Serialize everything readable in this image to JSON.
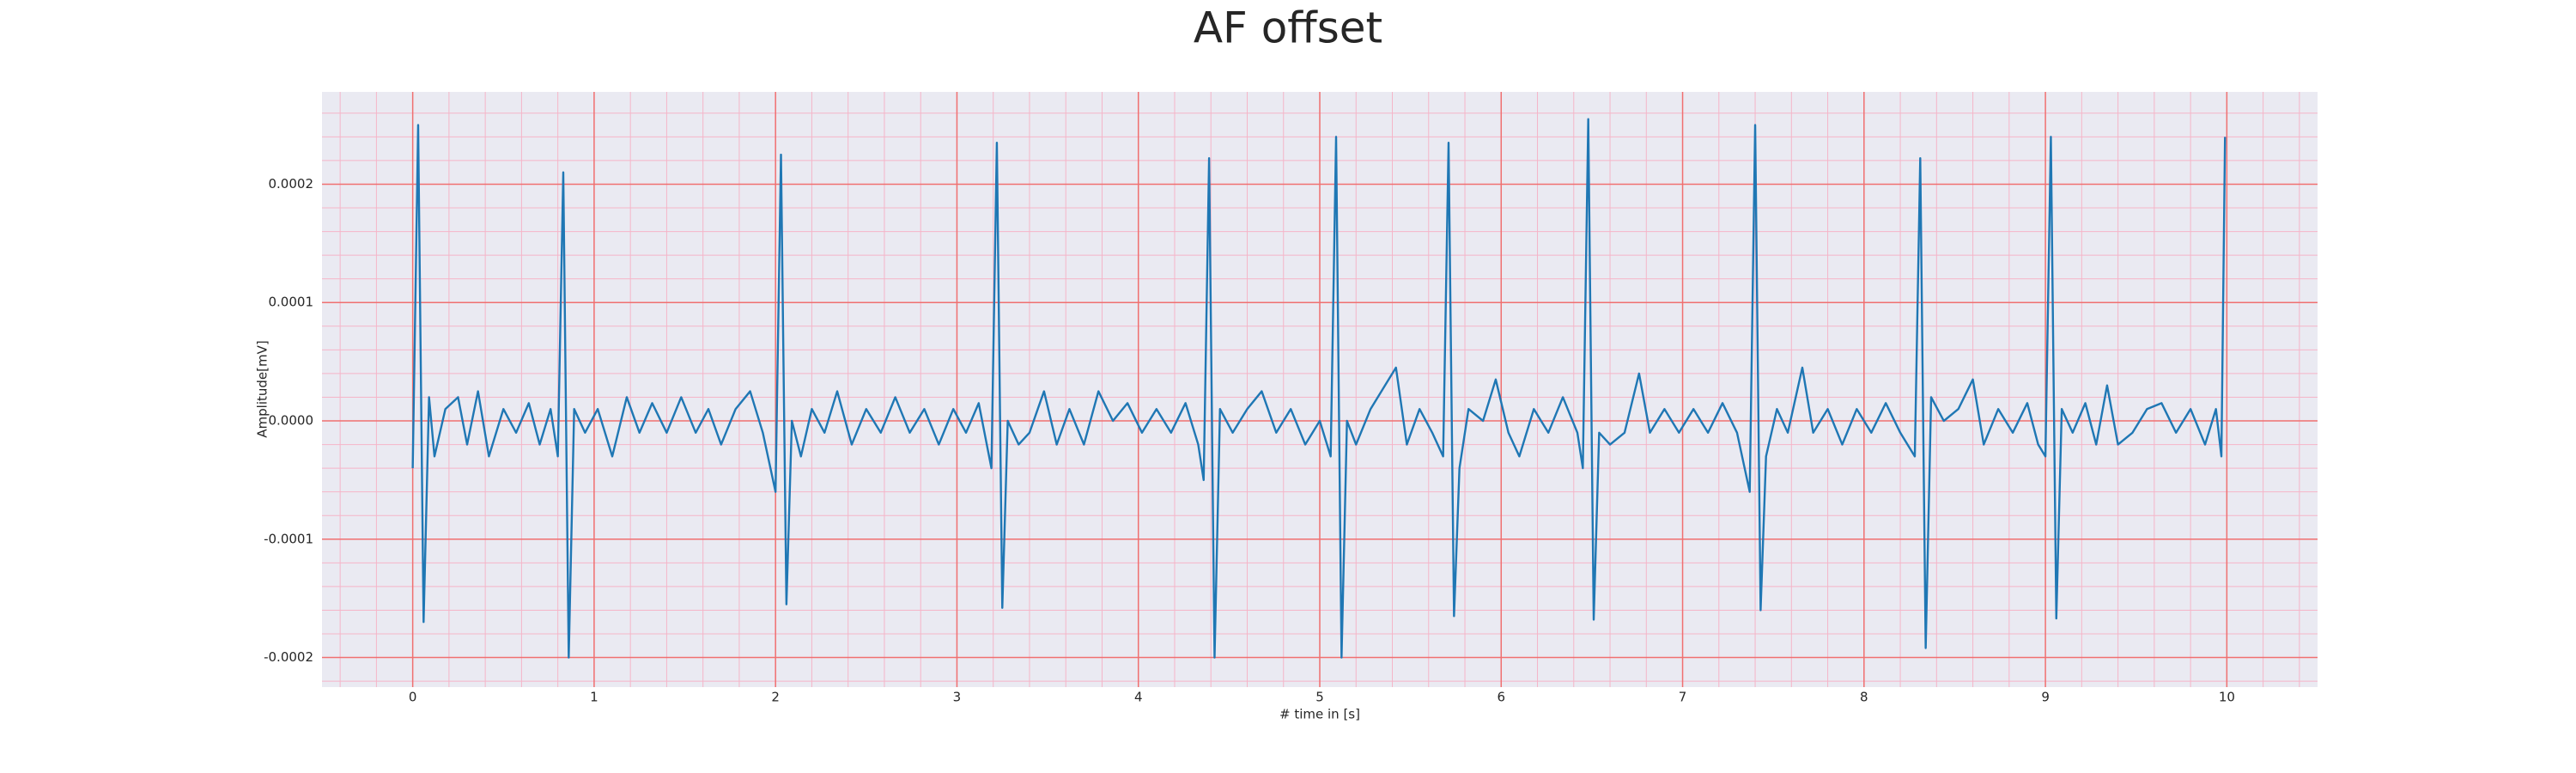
{
  "chart_data": {
    "type": "line",
    "title": "AF offset",
    "xlabel": "# time in [s]",
    "ylabel": "Amplitude[mV]",
    "color": "#1f77b4",
    "grid": true,
    "minor_grid": true,
    "xlim": [
      -0.5,
      10.5
    ],
    "ylim": [
      -0.000225,
      0.000278
    ],
    "xticks": [
      0,
      1,
      2,
      3,
      4,
      5,
      6,
      7,
      8,
      9,
      10
    ],
    "yticks": [
      -0.0002,
      -0.0001,
      {
        "value": 0,
        "label": "0.0000"
      },
      0.0001,
      0.0002
    ],
    "x": [
      0,
      0.03,
      0.06,
      0.09,
      0.12,
      0.18,
      0.25,
      0.3,
      0.36,
      0.42,
      0.5,
      0.57,
      0.64,
      0.7,
      0.76,
      0.8,
      0.83,
      0.86,
      0.89,
      0.95,
      1.02,
      1.1,
      1.18,
      1.25,
      1.32,
      1.4,
      1.48,
      1.56,
      1.63,
      1.7,
      1.78,
      1.86,
      1.93,
      2.0,
      2.03,
      2.06,
      2.09,
      2.14,
      2.2,
      2.27,
      2.34,
      2.42,
      2.5,
      2.58,
      2.66,
      2.74,
      2.82,
      2.9,
      2.98,
      3.05,
      3.12,
      3.19,
      3.22,
      3.25,
      3.28,
      3.34,
      3.4,
      3.48,
      3.55,
      3.62,
      3.7,
      3.78,
      3.86,
      3.94,
      4.02,
      4.1,
      4.18,
      4.26,
      4.33,
      4.36,
      4.39,
      4.42,
      4.45,
      4.52,
      4.6,
      4.68,
      4.76,
      4.84,
      4.92,
      5.0,
      5.06,
      5.09,
      5.12,
      5.15,
      5.2,
      5.28,
      5.36,
      5.42,
      5.48,
      5.55,
      5.62,
      5.68,
      5.71,
      5.74,
      5.77,
      5.82,
      5.9,
      5.97,
      6.04,
      6.1,
      6.18,
      6.26,
      6.34,
      6.42,
      6.45,
      6.48,
      6.51,
      6.54,
      6.6,
      6.68,
      6.76,
      6.82,
      6.9,
      6.98,
      7.06,
      7.14,
      7.22,
      7.3,
      7.37,
      7.4,
      7.43,
      7.46,
      7.52,
      7.58,
      7.66,
      7.72,
      7.8,
      7.88,
      7.96,
      8.04,
      8.12,
      8.2,
      8.28,
      8.31,
      8.34,
      8.37,
      8.44,
      8.52,
      8.6,
      8.66,
      8.74,
      8.82,
      8.9,
      8.96,
      9.0,
      9.03,
      9.06,
      9.09,
      9.15,
      9.22,
      9.28,
      9.34,
      9.4,
      9.48,
      9.56,
      9.64,
      9.72,
      9.8,
      9.88,
      9.94,
      9.97,
      9.99
    ],
    "values": [
      -4e-05,
      0.00025,
      -0.00017,
      2e-05,
      -3e-05,
      1e-05,
      2e-05,
      -2e-05,
      2.5e-05,
      -3e-05,
      1e-05,
      -1e-05,
      1.5e-05,
      -2e-05,
      1e-05,
      -3e-05,
      0.00021,
      -0.0002,
      1e-05,
      -1e-05,
      1e-05,
      -3e-05,
      2e-05,
      -1e-05,
      1.5e-05,
      -1e-05,
      2e-05,
      -1e-05,
      1e-05,
      -2e-05,
      1e-05,
      2.5e-05,
      -1e-05,
      -6e-05,
      0.000225,
      -0.000155,
      0,
      -3e-05,
      1e-05,
      -1e-05,
      2.5e-05,
      -2e-05,
      1e-05,
      -1e-05,
      2e-05,
      -1e-05,
      1e-05,
      -2e-05,
      1e-05,
      -1e-05,
      1.5e-05,
      -4e-05,
      0.000235,
      -0.000158,
      0,
      -2e-05,
      -1e-05,
      2.5e-05,
      -2e-05,
      1e-05,
      -2e-05,
      2.5e-05,
      0,
      1.5e-05,
      -1e-05,
      1e-05,
      -1e-05,
      1.5e-05,
      -2e-05,
      -5e-05,
      0.000222,
      -0.0002,
      1e-05,
      -1e-05,
      1e-05,
      2.5e-05,
      -1e-05,
      1e-05,
      -2e-05,
      0,
      -3e-05,
      0.00024,
      -0.0002,
      0,
      -2e-05,
      1e-05,
      3e-05,
      4.5e-05,
      -2e-05,
      1e-05,
      -1e-05,
      -3e-05,
      0.000235,
      -0.000165,
      -4e-05,
      1e-05,
      0,
      3.5e-05,
      -1e-05,
      -3e-05,
      1e-05,
      -1e-05,
      2e-05,
      -1e-05,
      -4e-05,
      0.000255,
      -0.000168,
      -1e-05,
      -2e-05,
      -1e-05,
      4e-05,
      -1e-05,
      1e-05,
      -1e-05,
      1e-05,
      -1e-05,
      1.5e-05,
      -1e-05,
      -6e-05,
      0.00025,
      -0.00016,
      -3e-05,
      1e-05,
      -1e-05,
      4.5e-05,
      -1e-05,
      1e-05,
      -2e-05,
      1e-05,
      -1e-05,
      1.5e-05,
      -1e-05,
      -3e-05,
      0.000222,
      -0.000192,
      2e-05,
      0,
      1e-05,
      3.5e-05,
      -2e-05,
      1e-05,
      -1e-05,
      1.5e-05,
      -2e-05,
      -3e-05,
      0.00024,
      -0.000167,
      1e-05,
      -1e-05,
      1.5e-05,
      -2e-05,
      3e-05,
      -2e-05,
      -1e-05,
      1e-05,
      1.5e-05,
      -1e-05,
      1e-05,
      -2e-05,
      1e-05,
      -3e-05,
      0.00024
    ]
  }
}
